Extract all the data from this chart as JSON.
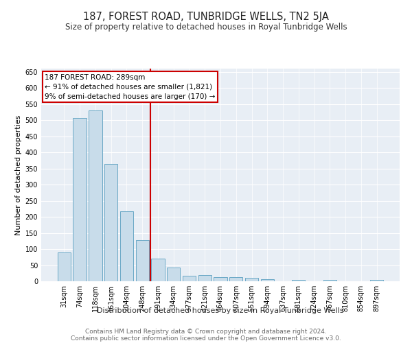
{
  "title": "187, FOREST ROAD, TUNBRIDGE WELLS, TN2 5JA",
  "subtitle": "Size of property relative to detached houses in Royal Tunbridge Wells",
  "xlabel": "Distribution of detached houses by size in Royal Tunbridge Wells",
  "ylabel": "Number of detached properties",
  "categories": [
    "31sqm",
    "74sqm",
    "118sqm",
    "161sqm",
    "204sqm",
    "248sqm",
    "291sqm",
    "334sqm",
    "377sqm",
    "421sqm",
    "464sqm",
    "507sqm",
    "551sqm",
    "594sqm",
    "637sqm",
    "681sqm",
    "724sqm",
    "767sqm",
    "810sqm",
    "854sqm",
    "897sqm"
  ],
  "values": [
    90,
    507,
    530,
    365,
    217,
    127,
    70,
    43,
    17,
    20,
    12,
    12,
    10,
    6,
    0,
    5,
    0,
    4,
    0,
    0,
    4
  ],
  "bar_color": "#c8dcea",
  "bar_edge_color": "#5a9fc0",
  "vline_color": "#cc0000",
  "vline_index": 6,
  "annotation_text_line1": "187 FOREST ROAD: 289sqm",
  "annotation_text_line2": "← 91% of detached houses are smaller (1,821)",
  "annotation_text_line3": "9% of semi-detached houses are larger (170) →",
  "annotation_box_color": "#cc0000",
  "ylim": [
    0,
    660
  ],
  "yticks": [
    0,
    50,
    100,
    150,
    200,
    250,
    300,
    350,
    400,
    450,
    500,
    550,
    600,
    650
  ],
  "bg_color": "#e8eef5",
  "footer_line1": "Contains HM Land Registry data © Crown copyright and database right 2024.",
  "footer_line2": "Contains public sector information licensed under the Open Government Licence v3.0.",
  "title_fontsize": 10.5,
  "subtitle_fontsize": 8.5,
  "xlabel_fontsize": 8,
  "ylabel_fontsize": 8,
  "tick_fontsize": 7,
  "annotation_fontsize": 7.5,
  "footer_fontsize": 6.5
}
